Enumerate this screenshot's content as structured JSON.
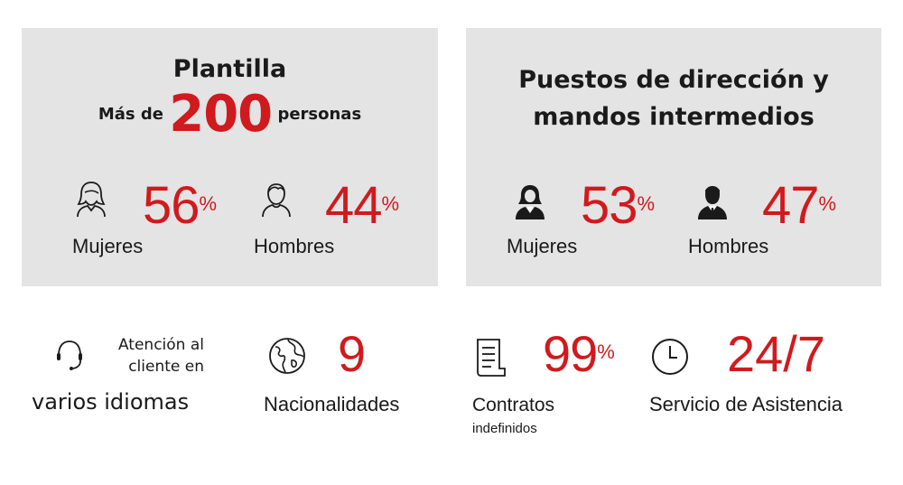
{
  "plantilla": {
    "title": "Plantilla",
    "subtitle_prefix": "Más de",
    "count": "200",
    "subtitle_suffix": "personas",
    "women": {
      "value": "56",
      "unit": "%",
      "label": "Mujeres"
    },
    "men": {
      "value": "44",
      "unit": "%",
      "label": "Hombres"
    }
  },
  "puestos": {
    "title_line1": "Puestos de dirección y",
    "title_line2": "mandos intermedios",
    "women": {
      "value": "53",
      "unit": "%",
      "label": "Mujeres"
    },
    "men": {
      "value": "47",
      "unit": "%",
      "label": "Hombres"
    }
  },
  "stats": {
    "atencion": {
      "line1": "Atención al",
      "line2": "cliente en",
      "line3": "varios idiomas"
    },
    "nacionalidades": {
      "value": "9",
      "label": "Nacionalidades"
    },
    "contratos": {
      "value": "99",
      "unit": "%",
      "label": "Contratos",
      "sublabel": "indefinidos"
    },
    "servicio": {
      "value": "24/7",
      "label": "Servicio de Asistencia"
    }
  },
  "colors": {
    "accent": "#d01a1e",
    "card_bg": "#e4e4e4",
    "text": "#1a1a1a"
  },
  "icons": [
    "woman-outline-icon",
    "man-outline-icon",
    "businesswoman-icon",
    "businessman-icon",
    "headset-icon",
    "globe-icon",
    "document-icon",
    "clock-icon"
  ]
}
